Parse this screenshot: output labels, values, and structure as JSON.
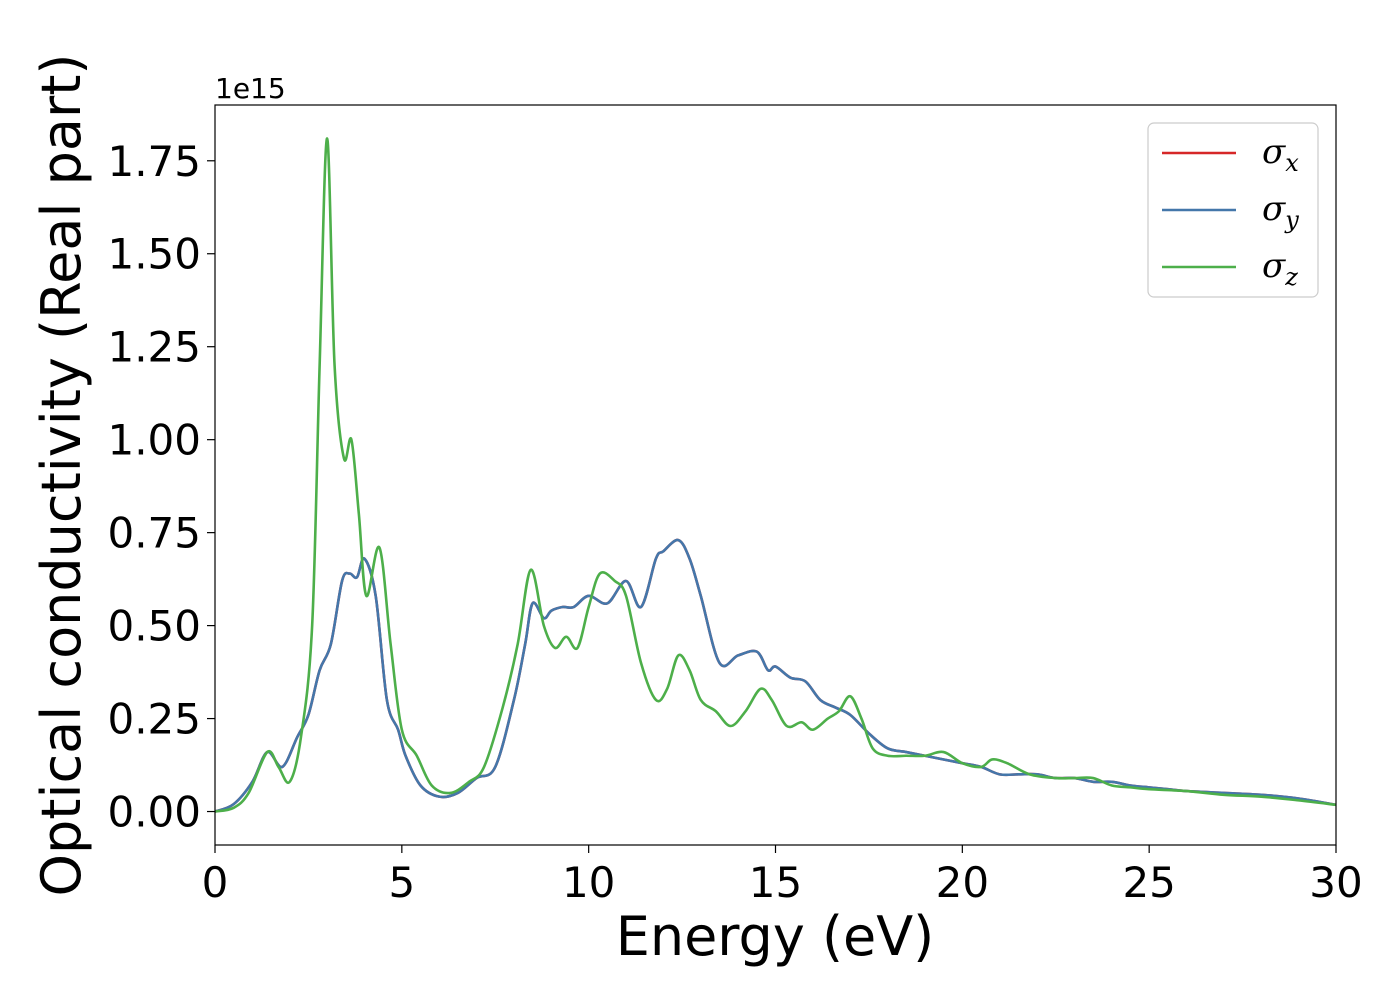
{
  "chart_data": {
    "type": "line",
    "xlabel": "Energy (eV)",
    "ylabel": "Optical conductivity (Real part)",
    "y_offset_label": "1e15",
    "y_scale": 1000000000000000.0,
    "xlim": [
      0,
      30
    ],
    "ylim": [
      -0.09,
      1.9
    ],
    "x_ticks": [
      0,
      5,
      10,
      15,
      20,
      25,
      30
    ],
    "x_tick_labels": [
      "0",
      "5",
      "10",
      "15",
      "20",
      "25",
      "30"
    ],
    "y_ticks": [
      0.0,
      0.25,
      0.5,
      0.75,
      1.0,
      1.25,
      1.5,
      1.75
    ],
    "y_tick_labels": [
      "0.00",
      "0.25",
      "0.50",
      "0.75",
      "1.00",
      "1.25",
      "1.50",
      "1.75"
    ],
    "grid": false,
    "legend_position": "top-right",
    "series": [
      {
        "name": "σx",
        "symbol": "σ",
        "subscript": "x",
        "color": "#d62728",
        "x": [
          0,
          0.5,
          1.0,
          1.4,
          1.8,
          2.2,
          2.5,
          2.8,
          3.1,
          3.4,
          3.6,
          3.8,
          4.0,
          4.3,
          4.6,
          4.9,
          5.1,
          5.5,
          6.0,
          6.5,
          7.0,
          7.5,
          8.0,
          8.3,
          8.5,
          8.8,
          9.0,
          9.3,
          9.6,
          10.0,
          10.5,
          11.0,
          11.4,
          11.8,
          12.0,
          12.4,
          12.7,
          13.0,
          13.5,
          14.0,
          14.5,
          14.8,
          15.0,
          15.4,
          15.8,
          16.2,
          16.6,
          17.0,
          17.5,
          18.0,
          18.5,
          19.0,
          19.5,
          20.0,
          20.5,
          21.0,
          21.5,
          22.0,
          22.5,
          23.0,
          23.5,
          24.0,
          24.5,
          25.0,
          25.5,
          26.0,
          27.0,
          28.0,
          29.0,
          30.0
        ],
        "y": [
          0.0,
          0.02,
          0.08,
          0.16,
          0.12,
          0.2,
          0.26,
          0.38,
          0.45,
          0.62,
          0.64,
          0.63,
          0.68,
          0.58,
          0.3,
          0.22,
          0.15,
          0.07,
          0.04,
          0.05,
          0.09,
          0.12,
          0.3,
          0.45,
          0.56,
          0.52,
          0.54,
          0.55,
          0.55,
          0.58,
          0.56,
          0.62,
          0.55,
          0.68,
          0.7,
          0.73,
          0.68,
          0.58,
          0.4,
          0.42,
          0.43,
          0.38,
          0.39,
          0.36,
          0.35,
          0.3,
          0.28,
          0.26,
          0.21,
          0.17,
          0.16,
          0.15,
          0.14,
          0.13,
          0.12,
          0.1,
          0.1,
          0.1,
          0.09,
          0.09,
          0.08,
          0.08,
          0.07,
          0.065,
          0.06,
          0.055,
          0.05,
          0.045,
          0.035,
          0.018
        ]
      },
      {
        "name": "σy",
        "symbol": "σ",
        "subscript": "y",
        "color": "#4477aa",
        "x": [
          0,
          0.5,
          1.0,
          1.4,
          1.8,
          2.2,
          2.5,
          2.8,
          3.1,
          3.4,
          3.6,
          3.8,
          4.0,
          4.3,
          4.6,
          4.9,
          5.1,
          5.5,
          6.0,
          6.5,
          7.0,
          7.5,
          8.0,
          8.3,
          8.5,
          8.8,
          9.0,
          9.3,
          9.6,
          10.0,
          10.5,
          11.0,
          11.4,
          11.8,
          12.0,
          12.4,
          12.7,
          13.0,
          13.5,
          14.0,
          14.5,
          14.8,
          15.0,
          15.4,
          15.8,
          16.2,
          16.6,
          17.0,
          17.5,
          18.0,
          18.5,
          19.0,
          19.5,
          20.0,
          20.5,
          21.0,
          21.5,
          22.0,
          22.5,
          23.0,
          23.5,
          24.0,
          24.5,
          25.0,
          25.5,
          26.0,
          27.0,
          28.0,
          29.0,
          30.0
        ],
        "y": [
          0.0,
          0.02,
          0.08,
          0.16,
          0.12,
          0.2,
          0.26,
          0.38,
          0.45,
          0.62,
          0.64,
          0.63,
          0.68,
          0.58,
          0.3,
          0.22,
          0.15,
          0.07,
          0.04,
          0.05,
          0.09,
          0.12,
          0.3,
          0.45,
          0.56,
          0.52,
          0.54,
          0.55,
          0.55,
          0.58,
          0.56,
          0.62,
          0.55,
          0.68,
          0.7,
          0.73,
          0.68,
          0.58,
          0.4,
          0.42,
          0.43,
          0.38,
          0.39,
          0.36,
          0.35,
          0.3,
          0.28,
          0.26,
          0.21,
          0.17,
          0.16,
          0.15,
          0.14,
          0.13,
          0.12,
          0.1,
          0.1,
          0.1,
          0.09,
          0.09,
          0.08,
          0.08,
          0.07,
          0.065,
          0.06,
          0.055,
          0.05,
          0.045,
          0.035,
          0.018
        ]
      },
      {
        "name": "σz",
        "symbol": "σ",
        "subscript": "z",
        "color": "#4daf4a",
        "x": [
          0,
          0.5,
          0.9,
          1.4,
          1.7,
          2.0,
          2.3,
          2.6,
          2.8,
          3.0,
          3.2,
          3.45,
          3.65,
          3.85,
          4.05,
          4.4,
          4.7,
          5.0,
          5.4,
          5.8,
          6.3,
          6.8,
          7.2,
          7.7,
          8.1,
          8.45,
          8.8,
          9.1,
          9.4,
          9.7,
          10.0,
          10.3,
          10.7,
          11.0,
          11.4,
          11.8,
          12.1,
          12.4,
          12.7,
          13.0,
          13.4,
          13.8,
          14.2,
          14.6,
          14.9,
          15.3,
          15.7,
          16.0,
          16.4,
          16.7,
          17.0,
          17.3,
          17.6,
          18.0,
          18.5,
          19.0,
          19.5,
          20.0,
          20.5,
          20.8,
          21.2,
          21.8,
          22.5,
          23.0,
          23.5,
          24.0,
          24.5,
          25.0,
          26.0,
          27.0,
          28.0,
          29.0,
          30.0
        ],
        "y": [
          0.0,
          0.01,
          0.05,
          0.16,
          0.12,
          0.08,
          0.2,
          0.5,
          1.2,
          1.81,
          1.2,
          0.95,
          1.0,
          0.8,
          0.58,
          0.71,
          0.45,
          0.22,
          0.15,
          0.07,
          0.05,
          0.08,
          0.12,
          0.28,
          0.45,
          0.65,
          0.5,
          0.44,
          0.47,
          0.44,
          0.55,
          0.64,
          0.62,
          0.58,
          0.4,
          0.3,
          0.33,
          0.42,
          0.38,
          0.3,
          0.27,
          0.23,
          0.27,
          0.33,
          0.3,
          0.23,
          0.24,
          0.22,
          0.25,
          0.27,
          0.31,
          0.25,
          0.17,
          0.15,
          0.15,
          0.15,
          0.16,
          0.13,
          0.12,
          0.14,
          0.13,
          0.1,
          0.09,
          0.09,
          0.09,
          0.07,
          0.065,
          0.06,
          0.055,
          0.045,
          0.04,
          0.03,
          0.018
        ]
      }
    ]
  }
}
